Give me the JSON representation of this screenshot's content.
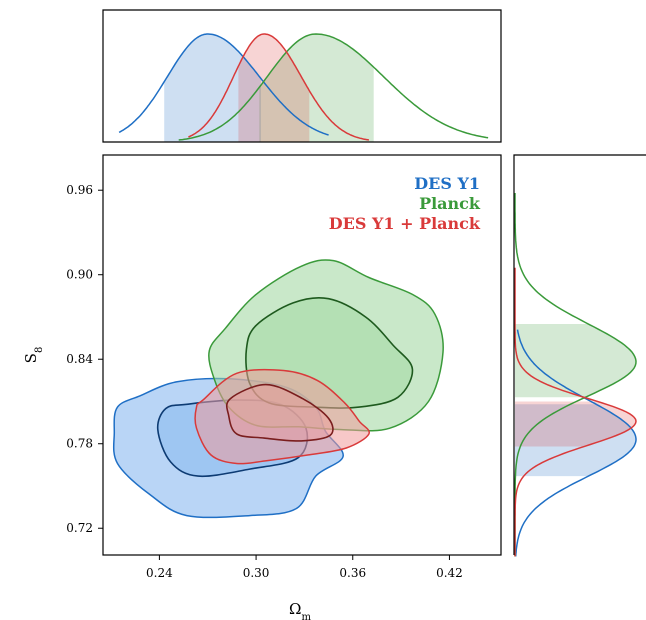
{
  "chart_data": [
    {
      "type": "contour",
      "panel": "joint",
      "xlabel_base": "Ω",
      "xlabel_sub": "m",
      "ylabel_base": "S",
      "ylabel_sub": "8",
      "xlim": [
        0.205,
        0.452
      ],
      "ylim": [
        0.701,
        0.985
      ],
      "x_ticks": [
        0.24,
        0.3,
        0.36,
        0.42
      ],
      "x_tick_labels": [
        "0.24",
        "0.30",
        "0.36",
        "0.42"
      ],
      "y_ticks": [
        0.72,
        0.78,
        0.84,
        0.9,
        0.96
      ],
      "y_tick_labels": [
        "0.72",
        "0.78",
        "0.84",
        "0.90",
        "0.96"
      ],
      "legend_position": "top-right",
      "series": [
        {
          "name": "DES Y1",
          "color": "#1f6fc5",
          "fill": "#7fb3ee",
          "inner_line": "#0d3b73",
          "contour_68": [
            [
              0.257,
              0.808
            ],
            [
              0.287,
              0.811
            ],
            [
              0.315,
              0.808
            ],
            [
              0.331,
              0.791
            ],
            [
              0.326,
              0.77
            ],
            [
              0.296,
              0.762
            ],
            [
              0.264,
              0.757
            ],
            [
              0.247,
              0.767
            ],
            [
              0.239,
              0.79
            ],
            [
              0.244,
              0.805
            ]
          ],
          "contour_95": [
            [
              0.228,
              0.814
            ],
            [
              0.251,
              0.824
            ],
            [
              0.285,
              0.826
            ],
            [
              0.319,
              0.82
            ],
            [
              0.337,
              0.806
            ],
            [
              0.343,
              0.789
            ],
            [
              0.354,
              0.771
            ],
            [
              0.337,
              0.757
            ],
            [
              0.325,
              0.734
            ],
            [
              0.296,
              0.729
            ],
            [
              0.257,
              0.729
            ],
            [
              0.234,
              0.744
            ],
            [
              0.214,
              0.766
            ],
            [
              0.212,
              0.788
            ],
            [
              0.214,
              0.806
            ]
          ]
        },
        {
          "name": "Planck",
          "color": "#3a9a3a",
          "fill": "#9cd69c",
          "inner_line": "#1e5a1e",
          "contour_68": [
            [
              0.3,
              0.864
            ],
            [
              0.323,
              0.88
            ],
            [
              0.345,
              0.883
            ],
            [
              0.368,
              0.87
            ],
            [
              0.385,
              0.85
            ],
            [
              0.397,
              0.833
            ],
            [
              0.388,
              0.813
            ],
            [
              0.364,
              0.806
            ],
            [
              0.336,
              0.806
            ],
            [
              0.308,
              0.809
            ],
            [
              0.296,
              0.823
            ],
            [
              0.294,
              0.847
            ]
          ],
          "contour_95": [
            [
              0.281,
              0.862
            ],
            [
              0.3,
              0.886
            ],
            [
              0.328,
              0.906
            ],
            [
              0.348,
              0.91
            ],
            [
              0.37,
              0.898
            ],
            [
              0.397,
              0.886
            ],
            [
              0.411,
              0.872
            ],
            [
              0.416,
              0.845
            ],
            [
              0.407,
              0.81
            ],
            [
              0.383,
              0.791
            ],
            [
              0.353,
              0.79
            ],
            [
              0.326,
              0.792
            ],
            [
              0.3,
              0.793
            ],
            [
              0.283,
              0.806
            ],
            [
              0.274,
              0.826
            ],
            [
              0.271,
              0.846
            ]
          ]
        },
        {
          "name": "DES Y1 + Planck",
          "color": "#d93a3a",
          "fill": "#f09a9a",
          "inner_line": "#7a1e1e",
          "contour_68": [
            [
              0.284,
              0.812
            ],
            [
              0.306,
              0.822
            ],
            [
              0.329,
              0.812
            ],
            [
              0.345,
              0.798
            ],
            [
              0.346,
              0.786
            ],
            [
              0.328,
              0.782
            ],
            [
              0.305,
              0.784
            ],
            [
              0.288,
              0.787
            ],
            [
              0.283,
              0.8
            ]
          ],
          "contour_95": [
            [
              0.267,
              0.811
            ],
            [
              0.288,
              0.83
            ],
            [
              0.317,
              0.832
            ],
            [
              0.338,
              0.825
            ],
            [
              0.355,
              0.809
            ],
            [
              0.364,
              0.796
            ],
            [
              0.37,
              0.787
            ],
            [
              0.356,
              0.777
            ],
            [
              0.332,
              0.772
            ],
            [
              0.307,
              0.768
            ],
            [
              0.288,
              0.766
            ],
            [
              0.272,
              0.772
            ],
            [
              0.263,
              0.791
            ],
            [
              0.263,
              0.806
            ]
          ]
        }
      ]
    },
    {
      "type": "density",
      "panel": "top-marginal",
      "variable": "Omega_m",
      "series": [
        {
          "name": "DES Y1",
          "color": "#1f6fc5",
          "mean": 0.27,
          "sigma_left": 0.025,
          "sigma_right": 0.032,
          "range": [
            0.215,
            0.345
          ],
          "band": [
            0.243,
            0.303
          ]
        },
        {
          "name": "Planck",
          "color": "#3a9a3a",
          "mean": 0.337,
          "sigma_left": 0.03,
          "sigma_right": 0.042,
          "range": [
            0.252,
            0.444
          ],
          "band": [
            0.302,
            0.373
          ]
        },
        {
          "name": "DES Y1 + Planck",
          "color": "#d93a3a",
          "mean": 0.305,
          "sigma_left": 0.019,
          "sigma_right": 0.023,
          "range": [
            0.258,
            0.37
          ],
          "band": [
            0.289,
            0.333
          ]
        }
      ]
    },
    {
      "type": "density",
      "panel": "right-marginal",
      "variable": "S_8",
      "series": [
        {
          "name": "DES Y1",
          "color": "#1f6fc5",
          "mean": 0.783,
          "sigma_left": 0.026,
          "sigma_right": 0.028,
          "range": [
            0.7,
            0.861
          ],
          "band": [
            0.757,
            0.808
          ]
        },
        {
          "name": "Planck",
          "color": "#3a9a3a",
          "mean": 0.838,
          "sigma_left": 0.024,
          "sigma_right": 0.027,
          "range": [
            0.7,
            0.958
          ],
          "band": [
            0.813,
            0.865
          ]
        },
        {
          "name": "DES Y1 + Planck",
          "color": "#d93a3a",
          "mean": 0.796,
          "sigma_left": 0.017,
          "sigma_right": 0.016,
          "range": [
            0.7,
            0.905
          ],
          "band": [
            0.778,
            0.81
          ]
        }
      ]
    }
  ]
}
